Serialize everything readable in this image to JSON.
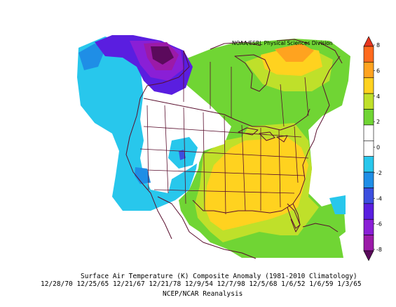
{
  "credit": "NOAA/ESRL Physical Sciences Division",
  "caption_title": "Surface Air Temperature (K) Composite Anomaly (1981-2010 Climatology)",
  "caption_dates": "12/28/70 12/25/65 12/21/67 12/21/78 12/9/54 12/7/98 12/5/68 1/6/52 1/6/59 1/3/65",
  "caption_source": "NCEP/NCAR Reanalysis",
  "colorbar": {
    "tick_labels": [
      "8",
      "6",
      "4",
      "2",
      "0",
      "-2",
      "-4",
      "-6",
      "-8"
    ],
    "bands": [
      {
        "range": "6 to 8",
        "color": "#e8361f"
      },
      {
        "range": "5 to 6",
        "color": "#ff6a1e"
      },
      {
        "range": "4 to 5",
        "color": "#ffa31f"
      },
      {
        "range": "3 to 4",
        "color": "#ffd21f"
      },
      {
        "range": "2 to 3",
        "color": "#bfe02a"
      },
      {
        "range": "1 to 2",
        "color": "#70d534"
      },
      {
        "range": "0 to 1",
        "color": "#ffffff"
      },
      {
        "range": "-1 to 0",
        "color": "#ffffff"
      },
      {
        "range": "-2 to -1",
        "color": "#28c7ec"
      },
      {
        "range": "-3 to -2",
        "color": "#1f8ee6"
      },
      {
        "range": "-4 to -3",
        "color": "#3c4fdf"
      },
      {
        "range": "-5 to -4",
        "color": "#5a1ee0"
      },
      {
        "range": "-6 to -5",
        "color": "#8a1fd6"
      },
      {
        "range": "-7 to -6",
        "color": "#9b1aa8"
      },
      {
        "range": "-8 to -7",
        "color": "#5b0a5c"
      }
    ]
  },
  "colors": {
    "very_warm": "#ffa31f",
    "warm": "#ffd21f",
    "mild_warm": "#70d534",
    "neutral": "#ffffff",
    "mild_cold": "#28c7ec",
    "cold": "#1f8ee6",
    "very_cold": "#5a1ee0",
    "extreme_cold": "#5b0a5c",
    "boundaries": "#5a0f2e"
  }
}
